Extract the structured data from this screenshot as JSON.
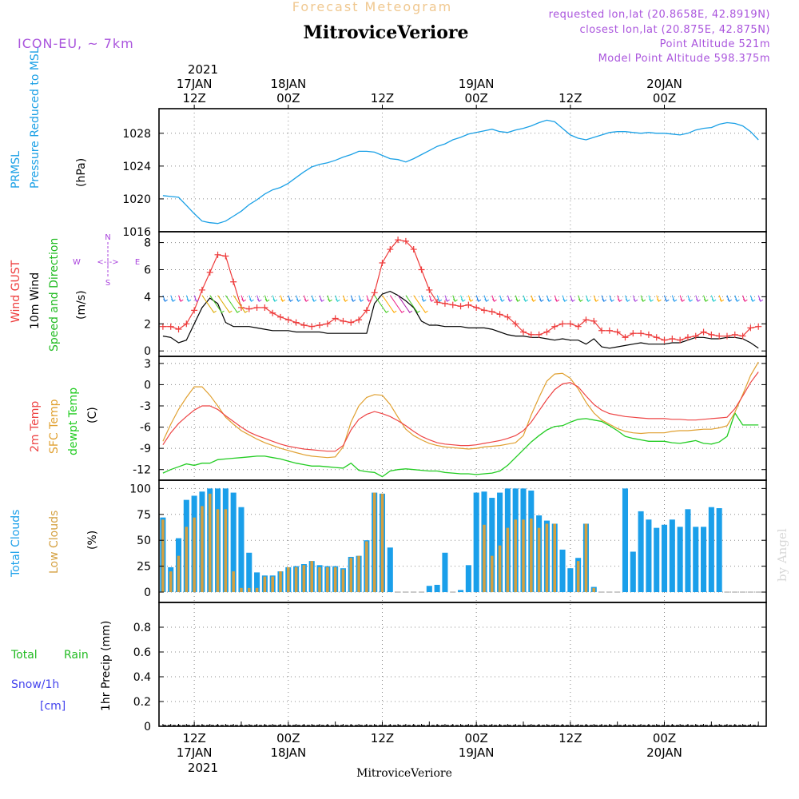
{
  "header": {
    "subtitle": "Forecast Meteogram",
    "title": "MitroviceVeriore",
    "model": "ICON-EU, ~ 7km",
    "requested": "requested lon,lat (20.8658E, 42.8919N)",
    "closest": "closest lon,lat (20.875E, 42.875N)",
    "altitude": "Point Altitude 521m",
    "model_altitude": "Model Point Altitude 598.375m"
  },
  "colors": {
    "pressure": "#1aa0e6",
    "gust": "#ee3b3b",
    "wind": "#000000",
    "wind_title": "#22bb22",
    "temp2m": "#ee4444",
    "sfc": "#e0a030",
    "dew": "#22cc22",
    "total_cloud": "#1a9fea",
    "low_cloud": "#d4a040",
    "rain": "#22bb22",
    "snow": "#4444ee",
    "compass": "#aa44dd",
    "grid": "#888888"
  },
  "time_axis": {
    "year": "2021",
    "top_labels": [
      {
        "hour": 12,
        "line1": "17JAN",
        "line2": "12Z"
      },
      {
        "hour": 24,
        "line1": "18JAN",
        "line2": "00Z"
      },
      {
        "hour": 36,
        "line1": "",
        "line2": "12Z"
      },
      {
        "hour": 48,
        "line1": "19JAN",
        "line2": "00Z"
      },
      {
        "hour": 60,
        "line1": "",
        "line2": "12Z"
      },
      {
        "hour": 72,
        "line1": "20JAN",
        "line2": "00Z"
      }
    ],
    "bottom_labels": [
      {
        "hour": 12,
        "line1": "12Z",
        "line2": "17JAN"
      },
      {
        "hour": 24,
        "line1": "00Z",
        "line2": "18JAN"
      },
      {
        "hour": 36,
        "line1": "12Z",
        "line2": ""
      },
      {
        "hour": 48,
        "line1": "00Z",
        "line2": "19JAN"
      },
      {
        "hour": 60,
        "line1": "12Z",
        "line2": ""
      },
      {
        "hour": 72,
        "line1": "00Z",
        "line2": "20JAN"
      }
    ],
    "footer": "MitroviceVeriore",
    "credit": "by Angel"
  },
  "panels": {
    "pressure": {
      "labels": [
        "PRMSL",
        "Pressure Reduced to MSL"
      ],
      "unit": "(hPa)",
      "yticks": [
        "1016",
        "1020",
        "1024",
        "1028"
      ]
    },
    "wind": {
      "labels": [
        "Wind GUST",
        "10m Wind",
        "Speed and Direction"
      ],
      "unit": "(m/s)",
      "yticks": [
        "0",
        "2",
        "4",
        "6",
        "8"
      ],
      "compass": {
        "n": "N",
        "s": "S",
        "w": "W",
        "e": "E",
        "arrow": "<-|->"
      }
    },
    "temp": {
      "labels": [
        "2m Temp",
        "SFC Temp",
        "dewpt Temp"
      ],
      "unit": "(C)",
      "yticks": [
        "-12",
        "-9",
        "-6",
        "-3",
        "0",
        "3"
      ]
    },
    "clouds": {
      "labels": [
        "Total Clouds",
        "Low Clouds"
      ],
      "unit": "(%)",
      "yticks": [
        "0",
        "25",
        "50",
        "75",
        "100"
      ]
    },
    "precip": {
      "labels": [
        "Total",
        "Rain",
        "Snow/1h",
        "[cm]"
      ],
      "unit": "1hr Precip (mm)",
      "yticks": [
        "0",
        "0.2",
        "0.4",
        "0.6",
        "0.8"
      ]
    }
  },
  "chart_data": [
    {
      "type": "line",
      "name": "PRMSL",
      "x_hours": [
        8,
        9,
        10,
        11,
        12,
        13,
        14,
        15,
        16,
        17,
        18,
        19,
        20,
        21,
        22,
        23,
        24,
        25,
        26,
        27,
        28,
        29,
        30,
        31,
        32,
        33,
        34,
        35,
        36,
        37,
        38,
        39,
        40,
        41,
        42,
        43,
        44,
        45,
        46,
        47,
        48,
        49,
        50,
        51,
        52,
        53,
        54,
        55,
        56,
        57,
        58,
        59,
        60,
        61,
        62,
        63,
        64,
        65,
        66,
        67,
        68,
        69,
        70,
        71,
        72,
        73,
        74,
        75,
        76,
        77,
        78,
        79,
        80,
        81,
        82,
        83,
        84
      ],
      "values": [
        1020.4,
        1020.3,
        1020.2,
        1019.2,
        1018.2,
        1017.3,
        1017.1,
        1017.0,
        1017.3,
        1017.9,
        1018.5,
        1019.3,
        1019.9,
        1020.6,
        1021.1,
        1021.4,
        1021.9,
        1022.6,
        1023.3,
        1023.9,
        1024.2,
        1024.4,
        1024.7,
        1025.1,
        1025.4,
        1025.8,
        1025.8,
        1025.7,
        1025.3,
        1024.9,
        1024.8,
        1024.5,
        1024.9,
        1025.4,
        1025.9,
        1026.4,
        1026.7,
        1027.2,
        1027.5,
        1027.9,
        1028.1,
        1028.3,
        1028.5,
        1028.2,
        1028.1,
        1028.4,
        1028.6,
        1028.9,
        1029.3,
        1029.6,
        1029.4,
        1028.6,
        1027.8,
        1027.4,
        1027.2,
        1027.5,
        1027.8,
        1028.1,
        1028.2,
        1028.2,
        1028.1,
        1028.0,
        1028.1,
        1028.0,
        1028.0,
        1027.9,
        1027.8,
        1028.0,
        1028.4,
        1028.6,
        1028.7,
        1029.1,
        1029.3,
        1029.2,
        1028.9,
        1028.2,
        1027.2
      ],
      "ylim": [
        1016,
        1031
      ]
    },
    {
      "type": "line",
      "name": "Wind",
      "x_hours": [
        8,
        9,
        10,
        11,
        12,
        13,
        14,
        15,
        16,
        17,
        18,
        19,
        20,
        21,
        22,
        23,
        24,
        25,
        26,
        27,
        28,
        29,
        30,
        31,
        32,
        33,
        34,
        35,
        36,
        37,
        38,
        39,
        40,
        41,
        42,
        43,
        44,
        45,
        46,
        47,
        48,
        49,
        50,
        51,
        52,
        53,
        54,
        55,
        56,
        57,
        58,
        59,
        60,
        61,
        62,
        63,
        64,
        65,
        66,
        67,
        68,
        69,
        70,
        71,
        72,
        73,
        74,
        75,
        76,
        77,
        78,
        79,
        80,
        81,
        82,
        83,
        84
      ],
      "gust": [
        1.8,
        1.8,
        1.6,
        2.0,
        3.0,
        4.5,
        5.8,
        7.1,
        7.0,
        5.1,
        3.2,
        3.1,
        3.2,
        3.2,
        2.8,
        2.5,
        2.3,
        2.1,
        1.9,
        1.8,
        1.9,
        2.0,
        2.4,
        2.2,
        2.1,
        2.3,
        3.0,
        4.3,
        6.5,
        7.5,
        8.2,
        8.1,
        7.5,
        6.0,
        4.5,
        3.6,
        3.5,
        3.4,
        3.3,
        3.4,
        3.2,
        3.0,
        2.9,
        2.7,
        2.5,
        2.0,
        1.4,
        1.2,
        1.2,
        1.4,
        1.8,
        2.0,
        2.0,
        1.8,
        2.3,
        2.2,
        1.5,
        1.5,
        1.4,
        1.0,
        1.3,
        1.3,
        1.2,
        1.0,
        0.8,
        0.9,
        0.8,
        1.0,
        1.1,
        1.4,
        1.2,
        1.1,
        1.1,
        1.2,
        1.1,
        1.7,
        1.8
      ],
      "speed": [
        1.1,
        1.0,
        0.6,
        0.8,
        2.0,
        3.2,
        3.9,
        3.5,
        2.1,
        1.8,
        1.8,
        1.8,
        1.7,
        1.6,
        1.5,
        1.5,
        1.5,
        1.4,
        1.4,
        1.4,
        1.4,
        1.3,
        1.3,
        1.3,
        1.3,
        1.3,
        1.3,
        3.5,
        4.2,
        4.4,
        4.1,
        3.7,
        3.2,
        2.2,
        1.9,
        1.9,
        1.8,
        1.8,
        1.8,
        1.7,
        1.7,
        1.7,
        1.6,
        1.4,
        1.2,
        1.1,
        1.1,
        1.0,
        1.0,
        0.9,
        0.8,
        0.9,
        0.8,
        0.8,
        0.5,
        0.9,
        0.3,
        0.2,
        0.3,
        0.4,
        0.5,
        0.6,
        0.5,
        0.5,
        0.5,
        0.6,
        0.6,
        0.8,
        1.0,
        1.0,
        0.9,
        0.9,
        1.0,
        1.0,
        0.9,
        0.6,
        0.2
      ],
      "ylim": [
        -0.4,
        8.8
      ]
    },
    {
      "type": "line",
      "name": "Temperature",
      "x_hours": [
        8,
        9,
        10,
        11,
        12,
        13,
        14,
        15,
        16,
        17,
        18,
        19,
        20,
        21,
        22,
        23,
        24,
        25,
        26,
        27,
        28,
        29,
        30,
        31,
        32,
        33,
        34,
        35,
        36,
        37,
        38,
        39,
        40,
        41,
        42,
        43,
        44,
        45,
        46,
        47,
        48,
        49,
        50,
        51,
        52,
        53,
        54,
        55,
        56,
        57,
        58,
        59,
        60,
        61,
        62,
        63,
        64,
        65,
        66,
        67,
        68,
        69,
        70,
        71,
        72,
        73,
        74,
        75,
        76,
        77,
        78,
        79,
        80,
        81,
        82,
        83,
        84
      ],
      "temp2m": [
        -8.5,
        -6.8,
        -5.5,
        -4.5,
        -3.6,
        -3.0,
        -3.0,
        -3.5,
        -4.4,
        -5.2,
        -6.0,
        -6.7,
        -7.2,
        -7.6,
        -8.0,
        -8.4,
        -8.7,
        -8.9,
        -9.1,
        -9.2,
        -9.3,
        -9.4,
        -9.4,
        -8.6,
        -6.4,
        -4.9,
        -4.2,
        -3.8,
        -4.1,
        -4.5,
        -5.1,
        -5.8,
        -6.6,
        -7.3,
        -7.8,
        -8.2,
        -8.4,
        -8.5,
        -8.6,
        -8.6,
        -8.5,
        -8.3,
        -8.1,
        -7.9,
        -7.6,
        -7.2,
        -6.5,
        -5.3,
        -3.7,
        -2.1,
        -0.7,
        0.1,
        0.3,
        -0.3,
        -1.6,
        -2.8,
        -3.6,
        -4.1,
        -4.3,
        -4.5,
        -4.6,
        -4.7,
        -4.8,
        -4.8,
        -4.8,
        -4.9,
        -4.9,
        -5.0,
        -5.0,
        -4.9,
        -4.8,
        -4.7,
        -4.6,
        -3.4,
        -1.6,
        0.3,
        1.8
      ],
      "sfc": [
        -8.0,
        -5.6,
        -3.5,
        -1.8,
        -0.3,
        -0.3,
        -1.5,
        -3.0,
        -4.6,
        -5.6,
        -6.5,
        -7.1,
        -7.7,
        -8.2,
        -8.6,
        -9.0,
        -9.3,
        -9.6,
        -9.9,
        -10.1,
        -10.2,
        -10.3,
        -10.2,
        -8.8,
        -5.3,
        -3.0,
        -1.8,
        -1.4,
        -1.5,
        -2.8,
        -4.6,
        -6.3,
        -7.2,
        -7.8,
        -8.3,
        -8.6,
        -8.8,
        -8.9,
        -9.0,
        -9.1,
        -9.0,
        -8.8,
        -8.7,
        -8.6,
        -8.4,
        -8.2,
        -7.2,
        -4.3,
        -1.8,
        0.5,
        1.5,
        1.6,
        0.9,
        -0.6,
        -2.5,
        -4.0,
        -5.0,
        -5.6,
        -6.2,
        -6.6,
        -6.8,
        -6.9,
        -6.8,
        -6.8,
        -6.8,
        -6.6,
        -6.5,
        -6.5,
        -6.4,
        -6.3,
        -6.3,
        -6.1,
        -5.8,
        -3.9,
        -1.4,
        1.3,
        3.2
      ],
      "dew": [
        -12.5,
        -12.0,
        -11.6,
        -11.2,
        -11.4,
        -11.1,
        -11.1,
        -10.6,
        -10.5,
        -10.4,
        -10.3,
        -10.2,
        -10.1,
        -10.1,
        -10.3,
        -10.5,
        -10.8,
        -11.1,
        -11.3,
        -11.5,
        -11.5,
        -11.6,
        -11.7,
        -11.8,
        -11.1,
        -12.1,
        -12.3,
        -12.4,
        -13.0,
        -12.2,
        -12.0,
        -11.9,
        -12.0,
        -12.1,
        -12.2,
        -12.2,
        -12.4,
        -12.5,
        -12.6,
        -12.6,
        -12.7,
        -12.6,
        -12.5,
        -12.2,
        -11.4,
        -10.3,
        -9.2,
        -8.1,
        -7.2,
        -6.4,
        -5.9,
        -5.8,
        -5.3,
        -4.9,
        -4.8,
        -5.0,
        -5.2,
        -5.8,
        -6.5,
        -7.3,
        -7.6,
        -7.8,
        -8.0,
        -8.0,
        -8.0,
        -8.2,
        -8.3,
        -8.1,
        -7.9,
        -8.3,
        -8.4,
        -8.1,
        -7.3,
        -4.0,
        -5.7,
        -5.7,
        -5.7
      ],
      "ylim": [
        -13.5,
        4
      ]
    },
    {
      "type": "bar",
      "name": "Clouds",
      "x_hours": [
        8,
        9,
        10,
        11,
        12,
        13,
        14,
        15,
        16,
        17,
        18,
        19,
        20,
        21,
        22,
        23,
        24,
        25,
        26,
        27,
        28,
        29,
        30,
        31,
        32,
        33,
        34,
        35,
        36,
        37,
        38,
        39,
        40,
        41,
        42,
        43,
        44,
        45,
        46,
        47,
        48,
        49,
        50,
        51,
        52,
        53,
        54,
        55,
        56,
        57,
        58,
        59,
        60,
        61,
        62,
        63,
        64,
        65,
        66,
        67,
        68,
        69,
        70,
        71,
        72,
        73,
        74,
        75,
        76,
        77,
        78,
        79,
        80,
        81,
        82,
        83,
        84
      ],
      "total": [
        72,
        24,
        52,
        89,
        93,
        97,
        100,
        100,
        100,
        96,
        82,
        38,
        19,
        16,
        16,
        20,
        24,
        25,
        27,
        30,
        26,
        25,
        25,
        23,
        34,
        35,
        50,
        96,
        95,
        43,
        0,
        0,
        0,
        0,
        6,
        7,
        38,
        0,
        2,
        26,
        96,
        97,
        91,
        96,
        100,
        100,
        100,
        98,
        74,
        69,
        66,
        41,
        23,
        33,
        66,
        5,
        0,
        0,
        0,
        100,
        39,
        78,
        70,
        62,
        65,
        70,
        63,
        80,
        63,
        63,
        82,
        81,
        0,
        0,
        0,
        0,
        0
      ],
      "low": [
        70,
        20,
        35,
        63,
        72,
        83,
        95,
        80,
        80,
        20,
        4,
        4,
        4,
        15,
        15,
        20,
        24,
        24,
        26,
        30,
        24,
        24,
        24,
        22,
        33,
        35,
        49,
        96,
        95,
        0,
        0,
        0,
        0,
        0,
        0,
        0,
        0,
        0,
        0,
        0,
        0,
        65,
        35,
        45,
        62,
        70,
        70,
        71,
        62,
        66,
        66,
        0,
        0,
        30,
        66,
        4,
        0,
        0,
        0,
        0,
        0,
        0,
        0,
        0,
        0,
        0,
        0,
        0,
        0,
        0,
        0,
        0,
        0,
        0,
        0,
        0,
        0
      ],
      "ylim": [
        -10,
        108
      ]
    },
    {
      "type": "bar",
      "name": "Precipitation",
      "x_hours": [
        8,
        84
      ],
      "values": [
        0,
        0
      ],
      "ylim": [
        0,
        1.0
      ]
    }
  ]
}
